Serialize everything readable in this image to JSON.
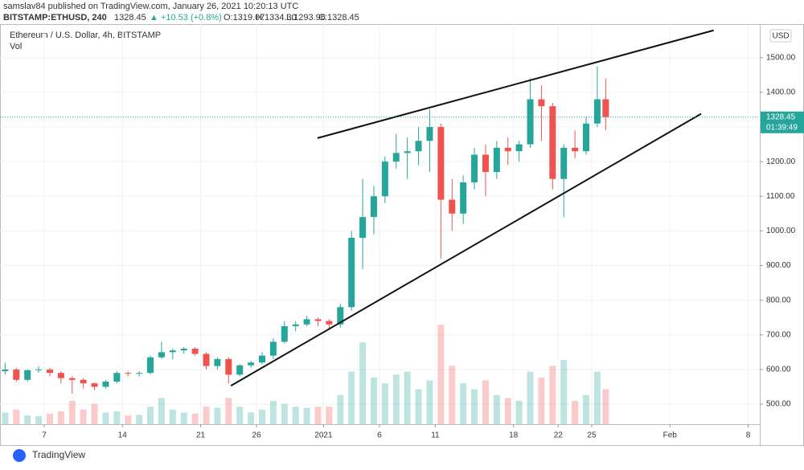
{
  "chart_data": {
    "type": "candlestick",
    "header": {
      "publisher": "samslav84 published on TradingView.com, January 26, 2021 10:20:13 UTC",
      "symbol": "BITSTAMP:ETHUSD, 240",
      "price": "1328.45",
      "change": "▲ +10.53 (+0.8%)",
      "open": "O:1319.07",
      "high": "H:1334.30",
      "low": "L:1293.96",
      "close": "C:1328.45"
    },
    "title": "Ethereum / U.S. Dollar, 4h, BITSTAMP",
    "volume_label": "Vol",
    "currency": "USD",
    "x": [
      "2020-12-03T12:00",
      "2020-12-04T12:00",
      "2020-12-05T12:00",
      "2020-12-06T12:00",
      "2020-12-07T12:00",
      "2020-12-08T12:00",
      "2020-12-09T12:00",
      "2020-12-10T12:00",
      "2020-12-11T12:00",
      "2020-12-12T12:00",
      "2020-12-13T12:00",
      "2020-12-14T12:00",
      "2020-12-15T12:00",
      "2020-12-16T12:00",
      "2020-12-17T12:00",
      "2020-12-18T12:00",
      "2020-12-19T12:00",
      "2020-12-20T12:00",
      "2020-12-21T12:00",
      "2020-12-22T12:00",
      "2020-12-23T12:00",
      "2020-12-24T12:00",
      "2020-12-25T12:00",
      "2020-12-26T12:00",
      "2020-12-27T12:00",
      "2020-12-28T12:00",
      "2020-12-29T12:00",
      "2020-12-30T12:00",
      "2020-12-31T12:00",
      "2021-01-01T12:00",
      "2021-01-02T12:00",
      "2021-01-03T12:00",
      "2021-01-04T12:00",
      "2021-01-05T12:00",
      "2021-01-06T12:00",
      "2021-01-07T12:00",
      "2021-01-08T12:00",
      "2021-01-09T12:00",
      "2021-01-10T12:00",
      "2021-01-11T12:00",
      "2021-01-12T12:00",
      "2021-01-13T12:00",
      "2021-01-14T12:00",
      "2021-01-15T12:00",
      "2021-01-16T12:00",
      "2021-01-17T12:00",
      "2021-01-18T12:00",
      "2021-01-19T12:00",
      "2021-01-20T12:00",
      "2021-01-21T12:00",
      "2021-01-22T12:00",
      "2021-01-23T12:00",
      "2021-01-24T12:00",
      "2021-01-25T12:00",
      "2021-01-26T06:00"
    ],
    "open": [
      595,
      600,
      570,
      598,
      600,
      590,
      575,
      570,
      560,
      550,
      565,
      590,
      588,
      590,
      635,
      650,
      655,
      660,
      645,
      610,
      630,
      585,
      612,
      620,
      640,
      680,
      725,
      730,
      745,
      740,
      730,
      780,
      980,
      1040,
      1100,
      1200,
      1225,
      1230,
      1260,
      1300,
      1090,
      1050,
      1140,
      1220,
      1170,
      1240,
      1230,
      1250,
      1380,
      1360,
      1150,
      1240,
      1230,
      1310,
      1380
    ],
    "high": [
      620,
      605,
      600,
      610,
      605,
      595,
      580,
      575,
      562,
      570,
      595,
      595,
      595,
      640,
      680,
      660,
      665,
      665,
      650,
      635,
      635,
      615,
      625,
      650,
      690,
      740,
      740,
      755,
      750,
      745,
      790,
      1000,
      1150,
      1130,
      1215,
      1280,
      1270,
      1300,
      1350,
      1310,
      1150,
      1160,
      1240,
      1250,
      1260,
      1270,
      1260,
      1440,
      1420,
      1370,
      1250,
      1290,
      1330,
      1475,
      1440
    ],
    "low": [
      585,
      565,
      565,
      590,
      580,
      560,
      530,
      545,
      540,
      545,
      560,
      580,
      580,
      585,
      630,
      630,
      645,
      640,
      600,
      600,
      560,
      580,
      605,
      615,
      630,
      675,
      710,
      725,
      725,
      715,
      720,
      770,
      890,
      990,
      1080,
      1180,
      1150,
      1190,
      1170,
      920,
      1000,
      1020,
      1120,
      1100,
      1150,
      1190,
      1200,
      1240,
      1260,
      1120,
      1040,
      1210,
      1220,
      1300,
      1290
    ],
    "close": [
      600,
      570,
      598,
      600,
      590,
      575,
      570,
      560,
      550,
      565,
      590,
      588,
      590,
      635,
      650,
      655,
      660,
      645,
      610,
      630,
      585,
      612,
      620,
      640,
      680,
      725,
      730,
      745,
      740,
      730,
      780,
      980,
      1040,
      1100,
      1200,
      1225,
      1230,
      1260,
      1300,
      1090,
      1050,
      1140,
      1220,
      1170,
      1240,
      1230,
      1250,
      1380,
      1360,
      1150,
      1240,
      1230,
      1310,
      1380,
      1328.45
    ],
    "volume": [
      20,
      25,
      15,
      14,
      18,
      22,
      40,
      25,
      35,
      20,
      22,
      15,
      16,
      30,
      45,
      25,
      20,
      18,
      30,
      28,
      45,
      30,
      20,
      25,
      40,
      35,
      30,
      28,
      30,
      30,
      50,
      90,
      140,
      80,
      70,
      85,
      90,
      60,
      75,
      170,
      100,
      70,
      60,
      75,
      50,
      45,
      40,
      90,
      80,
      100,
      110,
      40,
      50,
      90,
      60
    ],
    "up_color": "#26a69a",
    "down_color": "#ef5350",
    "xlim": [
      "2020-12-03T01:00",
      "2021-02-09T01:00"
    ],
    "ylim": [
      442,
      1597
    ],
    "vollim": [
      0,
      220
    ],
    "yticks": [
      {
        "value": 500,
        "label": "500.00"
      },
      {
        "value": 600,
        "label": "600.00"
      },
      {
        "value": 700,
        "label": "700.00"
      },
      {
        "value": 800,
        "label": "800.00"
      },
      {
        "value": 900,
        "label": "900.00"
      },
      {
        "value": 1000,
        "label": "1000.00"
      },
      {
        "value": 1100,
        "label": "1100.00"
      },
      {
        "value": 1200,
        "label": "1200.00"
      },
      {
        "value": 1300,
        "label": "1300.00"
      },
      {
        "value": 1400,
        "label": "1400.00"
      },
      {
        "value": 1500,
        "label": "1500.00"
      }
    ],
    "xticks": [
      {
        "value": "2020-12-07T00:00",
        "label": "7"
      },
      {
        "value": "2020-12-14T00:00",
        "label": "14"
      },
      {
        "value": "2020-12-21T00:00",
        "label": "21"
      },
      {
        "value": "2020-12-26T00:00",
        "label": "26"
      },
      {
        "value": "2021-01-01T00:00",
        "label": "2021"
      },
      {
        "value": "2021-01-06T00:00",
        "label": "6"
      },
      {
        "value": "2021-01-11T00:00",
        "label": "11"
      },
      {
        "value": "2021-01-18T00:00",
        "label": "18"
      },
      {
        "value": "2021-01-22T00:00",
        "label": "22"
      },
      {
        "value": "2021-01-25T00:00",
        "label": "25"
      },
      {
        "value": "2021-02-01T00:00",
        "label": "Feb"
      },
      {
        "value": "2021-02-08T00:00",
        "label": "8"
      }
    ],
    "last_price": {
      "value": 1328.45,
      "label": "1328.45"
    },
    "countdown": "01:39:49",
    "trendlines": [
      {
        "x": [
          "2020-12-31T11:00",
          "2021-02-04T22:00"
        ],
        "y": [
          1268,
          1579
        ]
      },
      {
        "x": [
          "2020-12-23T17:00",
          "2021-02-03T19:00"
        ],
        "y": [
          553,
          1338
        ]
      }
    ],
    "grid": true,
    "footer": "TradingView"
  }
}
